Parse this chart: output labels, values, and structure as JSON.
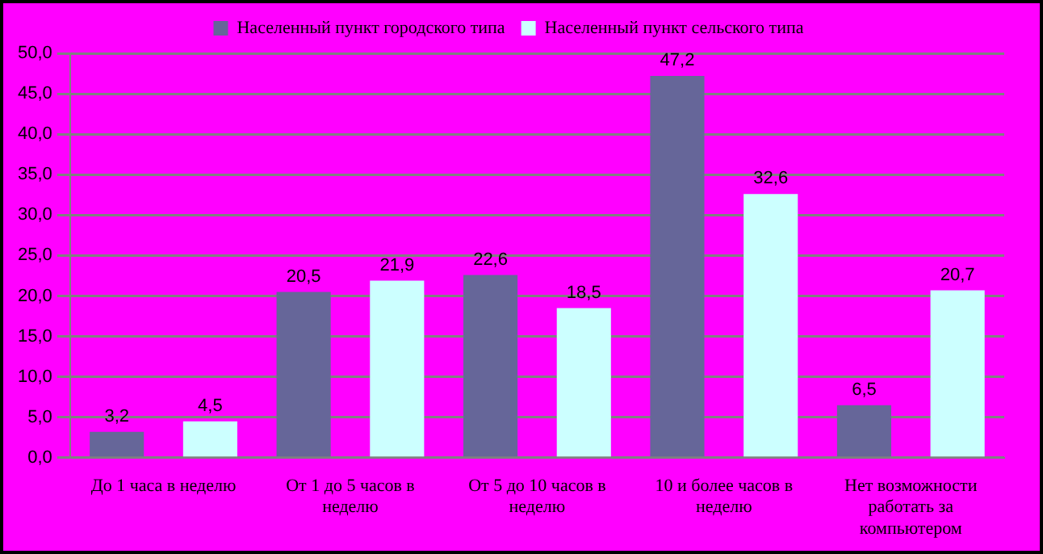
{
  "chart_data": {
    "type": "bar",
    "categories": [
      "До 1 часа в неделю",
      "От 1 до 5 часов в неделю",
      "От 5 до 10 часов в неделю",
      "10 и более часов в неделю",
      "Нет возможности работать за компьютером"
    ],
    "series": [
      {
        "name": "Населенный пункт городского типа",
        "color": "#666699",
        "values": [
          3.2,
          20.5,
          22.6,
          47.2,
          6.5
        ],
        "value_labels": [
          "3,2",
          "20,5",
          "22,6",
          "47,2",
          "6,5"
        ]
      },
      {
        "name": "Населенный пункт сельского типа",
        "color": "#ccffff",
        "values": [
          4.5,
          21.9,
          18.5,
          32.6,
          20.7
        ],
        "value_labels": [
          "4,5",
          "21,9",
          "18,5",
          "32,6",
          "20,7"
        ]
      }
    ],
    "ylim": [
      0,
      50
    ],
    "yticks": [
      {
        "value": 0,
        "label": "0,0"
      },
      {
        "value": 5,
        "label": "5,0"
      },
      {
        "value": 10,
        "label": "10,0"
      },
      {
        "value": 15,
        "label": "15,0"
      },
      {
        "value": 20,
        "label": "20,0"
      },
      {
        "value": 25,
        "label": "25,0"
      },
      {
        "value": 30,
        "label": "30,0"
      },
      {
        "value": 35,
        "label": "35,0"
      },
      {
        "value": 40,
        "label": "40,0"
      },
      {
        "value": 45,
        "label": "45,0"
      },
      {
        "value": 50,
        "label": "50,0"
      }
    ],
    "grid": "y",
    "legend": "top"
  }
}
